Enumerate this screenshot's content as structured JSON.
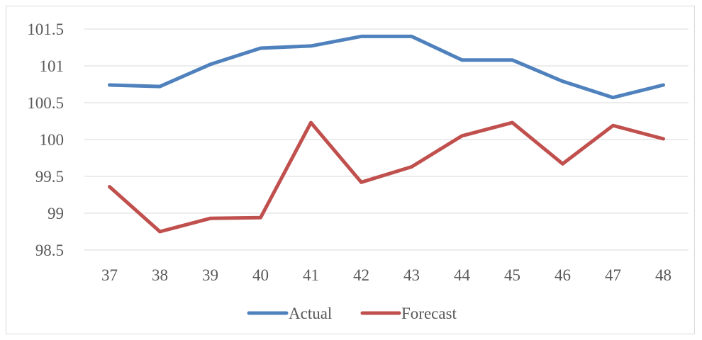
{
  "chart_data": {
    "type": "line",
    "categories": [
      "37",
      "38",
      "39",
      "40",
      "41",
      "42",
      "43",
      "44",
      "45",
      "46",
      "47",
      "48"
    ],
    "series": [
      {
        "name": "Actual",
        "color": "#4f81bd",
        "values": [
          100.74,
          100.72,
          101.02,
          101.24,
          101.27,
          101.4,
          101.4,
          101.08,
          101.08,
          100.79,
          100.57,
          100.74
        ]
      },
      {
        "name": "Forecast",
        "color": "#c0504d",
        "values": [
          99.36,
          98.75,
          98.93,
          98.94,
          100.23,
          99.42,
          99.63,
          100.05,
          100.23,
          99.67,
          100.19,
          100.01
        ]
      }
    ],
    "ylim": [
      98.5,
      101.5
    ],
    "yticks": [
      "98.5",
      "99",
      "99.5",
      "100",
      "100.5",
      "101",
      "101.5"
    ],
    "grid": true,
    "legend": "bottom"
  }
}
